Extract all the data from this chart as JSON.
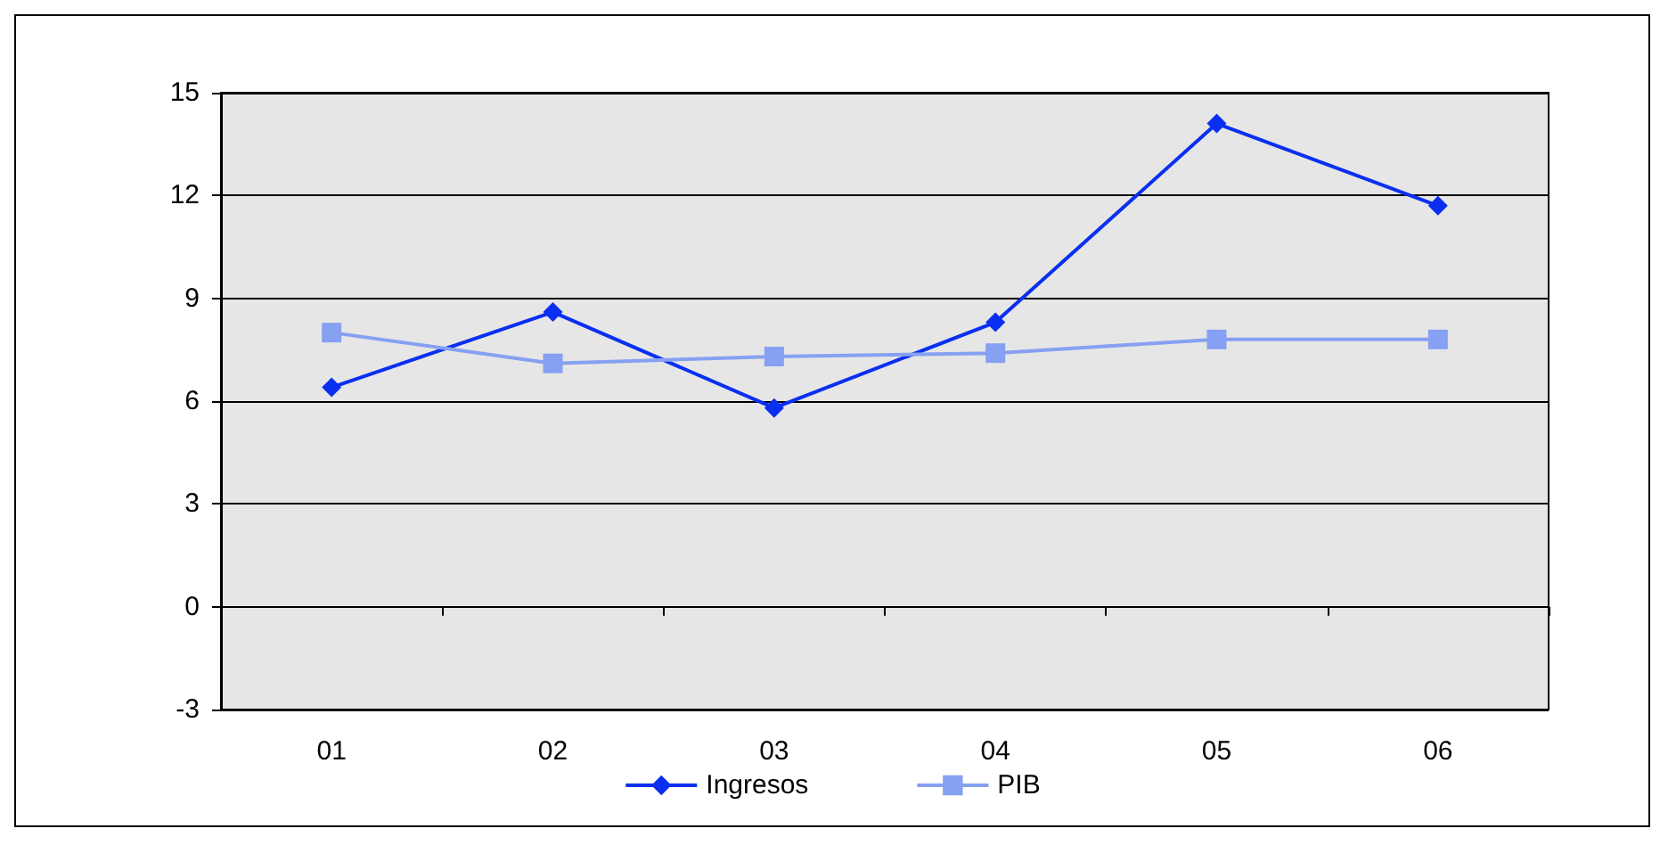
{
  "chart_data": {
    "type": "line",
    "categories": [
      "01",
      "02",
      "03",
      "04",
      "05",
      "06"
    ],
    "series": [
      {
        "name": "Ingresos",
        "color": "#0a2ff0",
        "marker": "diamond",
        "values": [
          6.4,
          8.6,
          5.8,
          8.3,
          14.1,
          11.7
        ]
      },
      {
        "name": "PIB",
        "color": "#86a0f2",
        "marker": "square",
        "values": [
          8.0,
          7.1,
          7.3,
          7.4,
          7.8,
          7.8
        ]
      }
    ],
    "ylim": [
      -3,
      15
    ],
    "yticks": [
      -3,
      0,
      3,
      6,
      9,
      12,
      15
    ],
    "grid": "y",
    "legend": "bottom",
    "line_style": "solid"
  }
}
